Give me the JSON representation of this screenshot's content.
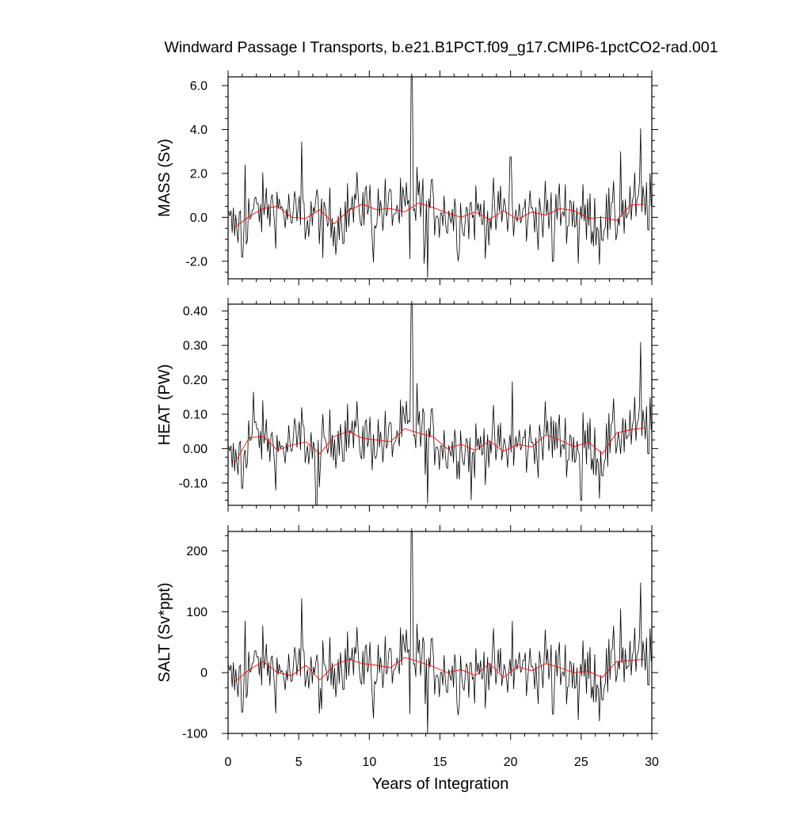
{
  "chart_data": {
    "type": "line",
    "title": "Windward Passage I Transports, b.e21.B1PCT.f09_g17.CMIP6-1pctCO2-rad.001",
    "xlabel": "Years of Integration",
    "xlim": [
      0,
      30
    ],
    "xticks": [
      "0",
      "5",
      "10",
      "15",
      "20",
      "25",
      "30"
    ],
    "colors": {
      "monthly": "#000000",
      "annual": "#ff0000"
    },
    "panels": [
      {
        "ylabel": "MASS (Sv)",
        "ylim": [
          -2.8,
          6.4
        ],
        "yticks": [
          "6.0",
          "4.0",
          "2.0",
          "0.0",
          "-2.0"
        ],
        "ytick_values": [
          6,
          4,
          2,
          0,
          -2
        ],
        "annual_x": [
          0.5,
          1.5,
          2.5,
          3.5,
          4.5,
          5.5,
          6.5,
          7.5,
          8.5,
          9.5,
          10.5,
          11.5,
          12.5,
          13.5,
          14.5,
          15.5,
          16.5,
          17.5,
          18.5,
          19.5,
          20.5,
          21.5,
          22.5,
          23.5,
          24.5,
          25.5,
          26.5,
          27.5,
          28.5,
          29.5
        ],
        "annual_values": [
          -0.45,
          0.05,
          0.4,
          0.5,
          0.0,
          -0.05,
          0.35,
          -0.3,
          0.3,
          0.6,
          0.35,
          0.4,
          0.25,
          0.65,
          0.45,
          0.2,
          0.0,
          0.25,
          -0.1,
          0.3,
          -0.1,
          0.25,
          0.1,
          0.4,
          0.3,
          -0.05,
          0.0,
          -0.15,
          0.55,
          0.6
        ],
        "spikes": [
          [
            1.2,
            2.4
          ],
          [
            1.0,
            -1.8
          ],
          [
            5.2,
            3.45
          ],
          [
            6.7,
            -1.85
          ],
          [
            10.3,
            -2.05
          ],
          [
            12.85,
            -1.9
          ],
          [
            13.0,
            6.5
          ],
          [
            13.4,
            2.3
          ],
          [
            13.85,
            -2.1
          ],
          [
            14.15,
            -2.75
          ],
          [
            16.3,
            -2.0
          ],
          [
            20.0,
            2.75
          ],
          [
            23.0,
            -2.0
          ],
          [
            24.8,
            -2.1
          ],
          [
            26.3,
            -2.15
          ],
          [
            27.8,
            3.0
          ],
          [
            29.2,
            4.05
          ]
        ]
      },
      {
        "ylabel": "HEAT (PW)",
        "ylim": [
          -0.165,
          0.42
        ],
        "yticks": [
          "0.40",
          "0.30",
          "0.20",
          "0.10",
          "0.00",
          "-0.10"
        ],
        "ytick_values": [
          0.4,
          0.3,
          0.2,
          0.1,
          0.0,
          -0.1
        ],
        "annual_x": [
          0.5,
          1.5,
          2.5,
          3.5,
          4.5,
          5.5,
          6.5,
          7.5,
          8.5,
          9.5,
          10.5,
          11.5,
          12.5,
          13.5,
          14.5,
          15.5,
          16.5,
          17.5,
          18.5,
          19.5,
          20.5,
          21.5,
          22.5,
          23.5,
          24.5,
          25.5,
          26.5,
          27.5,
          28.5,
          29.5
        ],
        "annual_values": [
          -0.04,
          0.032,
          0.035,
          -0.005,
          0.01,
          0.02,
          -0.015,
          0.035,
          0.05,
          0.03,
          0.025,
          0.02,
          0.058,
          0.045,
          0.035,
          0.0,
          0.012,
          -0.005,
          0.022,
          -0.008,
          0.012,
          0.005,
          0.04,
          0.025,
          0.005,
          0.02,
          -0.015,
          0.045,
          0.055,
          0.06
        ],
        "spikes": [
          [
            1.0,
            -0.115
          ],
          [
            1.8,
            0.165
          ],
          [
            5.2,
            0.12
          ],
          [
            6.25,
            -0.165
          ],
          [
            13.0,
            0.425
          ],
          [
            13.4,
            0.19
          ],
          [
            14.15,
            -0.16
          ],
          [
            17.2,
            -0.15
          ],
          [
            20.1,
            0.195
          ],
          [
            25.0,
            -0.15
          ],
          [
            26.3,
            -0.145
          ],
          [
            29.2,
            0.31
          ]
        ]
      },
      {
        "ylabel": "SALT (Sv*ppt)",
        "ylim": [
          -100,
          232
        ],
        "yticks": [
          "200",
          "100",
          "0",
          "-100"
        ],
        "ytick_values": [
          200,
          100,
          0,
          -100
        ],
        "annual_x": [
          0.5,
          1.5,
          2.5,
          3.5,
          4.5,
          5.5,
          6.5,
          7.5,
          8.5,
          9.5,
          10.5,
          11.5,
          12.5,
          13.5,
          14.5,
          15.5,
          16.5,
          17.5,
          18.5,
          19.5,
          20.5,
          21.5,
          22.5,
          23.5,
          24.5,
          25.5,
          26.5,
          27.5,
          28.5,
          29.5
        ],
        "annual_values": [
          -15,
          5,
          18,
          0,
          -5,
          12,
          -12,
          12,
          22,
          15,
          12,
          8,
          25,
          18,
          10,
          0,
          5,
          -5,
          15,
          -8,
          10,
          3,
          15,
          8,
          0,
          2,
          -8,
          18,
          20,
          22
        ],
        "spikes": [
          [
            1.0,
            -65
          ],
          [
            1.2,
            85
          ],
          [
            5.2,
            122
          ],
          [
            6.6,
            -60
          ],
          [
            10.3,
            -75
          ],
          [
            12.85,
            -68
          ],
          [
            13.0,
            232
          ],
          [
            13.4,
            80
          ],
          [
            14.15,
            -100
          ],
          [
            16.3,
            -70
          ],
          [
            20.1,
            85
          ],
          [
            23.0,
            -68
          ],
          [
            24.8,
            -78
          ],
          [
            26.3,
            -80
          ],
          [
            27.8,
            105
          ],
          [
            29.2,
            148
          ]
        ]
      }
    ]
  }
}
